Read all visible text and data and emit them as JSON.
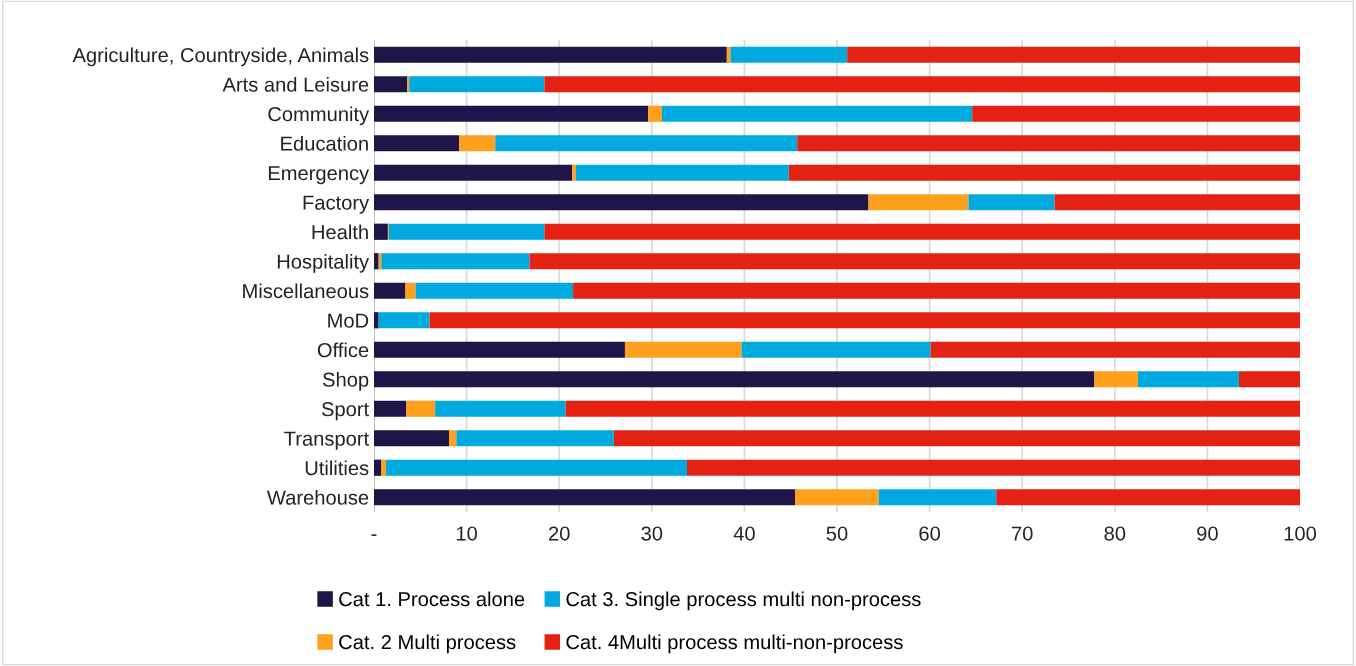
{
  "chart_data": {
    "type": "bar",
    "orientation": "horizontal",
    "stacked": true,
    "categories": [
      "Agriculture, Countryside, Animals",
      "Arts and Leisure",
      "Community",
      "Education",
      "Emergency",
      "Factory",
      "Health",
      "Hospitality",
      "Miscellaneous",
      "MoD",
      "Office",
      "Shop",
      "Sport",
      "Transport",
      "Utilities",
      "Warehouse"
    ],
    "series": [
      {
        "name": "Cat 1. Process alone",
        "color": "#1f1548",
        "values": [
          38.1,
          3.6,
          29.6,
          9.2,
          21.4,
          53.4,
          1.5,
          0.5,
          3.4,
          0.5,
          27.1,
          77.8,
          3.5,
          8.1,
          0.8,
          45.5
        ]
      },
      {
        "name": "Cat. 2 Multi process",
        "color": "#ffa01e",
        "values": [
          0.4,
          0.2,
          1.5,
          3.9,
          0.4,
          10.8,
          0.1,
          0.3,
          1.1,
          0,
          12.6,
          4.7,
          3.1,
          0.8,
          0.5,
          9.0
        ]
      },
      {
        "name": "Cat 3. Single process multi non-process",
        "color": "#00aade",
        "values": [
          12.6,
          14.6,
          33.5,
          32.6,
          23.0,
          9.3,
          16.8,
          16.0,
          17.0,
          5.5,
          20.4,
          10.9,
          14.1,
          17.0,
          32.5,
          12.7
        ]
      },
      {
        "name": "Cat. 4Multi process multi-non-process",
        "color": "#e32214",
        "values": [
          48.9,
          81.6,
          35.4,
          54.3,
          55.2,
          26.5,
          81.6,
          83.2,
          78.5,
          94.0,
          39.9,
          6.6,
          79.3,
          74.1,
          66.2,
          32.8
        ]
      }
    ],
    "xlim": [
      0,
      100
    ],
    "xticks": [
      {
        "value": 0,
        "label": "-"
      },
      10,
      20,
      30,
      40,
      50,
      60,
      70,
      80,
      90,
      100
    ],
    "grid": "x",
    "legend": "bottom"
  }
}
